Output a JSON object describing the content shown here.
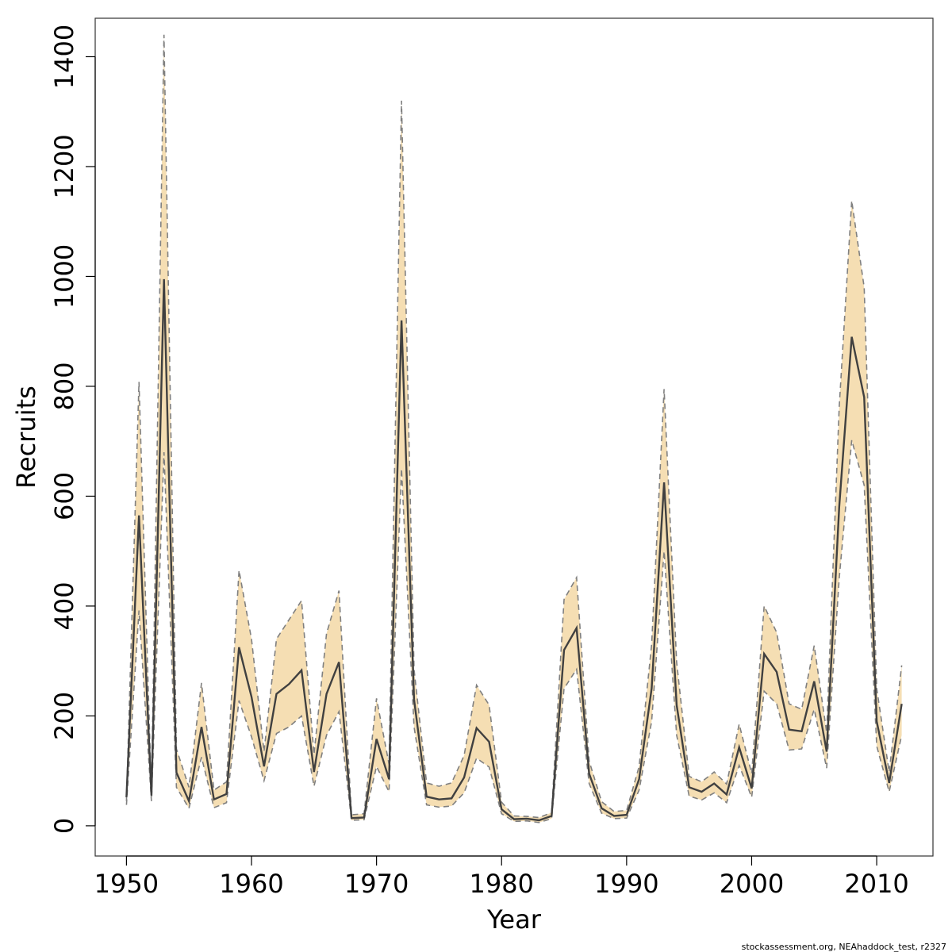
{
  "chart_data": {
    "type": "line",
    "xlabel": "Year",
    "ylabel": "Recruits",
    "xlim": [
      1947.5,
      2014.5
    ],
    "ylim": [
      -55,
      1470
    ],
    "x_ticks": [
      1950,
      1960,
      1970,
      1980,
      1990,
      2000,
      2010
    ],
    "y_ticks": [
      0,
      200,
      400,
      600,
      800,
      1000,
      1200,
      1400
    ],
    "grid": false,
    "legend": "none",
    "x": [
      1950,
      1951,
      1952,
      1953,
      1954,
      1955,
      1956,
      1957,
      1958,
      1959,
      1960,
      1961,
      1962,
      1963,
      1964,
      1965,
      1966,
      1967,
      1968,
      1969,
      1970,
      1971,
      1972,
      1973,
      1974,
      1975,
      1976,
      1977,
      1978,
      1979,
      1980,
      1981,
      1982,
      1983,
      1984,
      1985,
      1986,
      1987,
      1988,
      1989,
      1990,
      1991,
      1992,
      1993,
      1994,
      1995,
      1996,
      1997,
      1998,
      1999,
      2000,
      2001,
      2002,
      2003,
      2004,
      2005,
      2006,
      2007,
      2008,
      2009,
      2010,
      2011,
      2012
    ],
    "series": [
      {
        "role": "estimate",
        "values": [
          52,
          565,
          55,
          995,
          97,
          45,
          180,
          48,
          58,
          325,
          235,
          108,
          240,
          258,
          283,
          98,
          240,
          298,
          14,
          15,
          158,
          85,
          920,
          230,
          53,
          48,
          50,
          88,
          178,
          153,
          30,
          12,
          13,
          10,
          18,
          320,
          360,
          95,
          32,
          18,
          20,
          85,
          250,
          625,
          220,
          70,
          62,
          77,
          57,
          143,
          68,
          313,
          280,
          175,
          172,
          263,
          135,
          580,
          890,
          780,
          190,
          78,
          222
        ]
      },
      {
        "role": "upper",
        "values": [
          45,
          808,
          57,
          1440,
          140,
          70,
          260,
          65,
          80,
          465,
          340,
          135,
          340,
          375,
          410,
          130,
          350,
          428,
          20,
          22,
          232,
          112,
          1320,
          285,
          78,
          72,
          78,
          128,
          256,
          220,
          43,
          18,
          17,
          15,
          24,
          412,
          452,
          118,
          44,
          26,
          28,
          108,
          330,
          795,
          298,
          90,
          80,
          98,
          76,
          185,
          95,
          400,
          352,
          222,
          212,
          328,
          170,
          762,
          1138,
          980,
          250,
          98,
          292
        ]
      },
      {
        "role": "lower",
        "values": [
          38,
          392,
          45,
          680,
          70,
          32,
          125,
          33,
          42,
          228,
          162,
          82,
          168,
          180,
          200,
          72,
          165,
          208,
          10,
          11,
          108,
          62,
          650,
          180,
          38,
          34,
          36,
          60,
          123,
          107,
          22,
          8,
          9,
          6,
          13,
          250,
          285,
          77,
          23,
          13,
          14,
          65,
          190,
          500,
          165,
          54,
          47,
          60,
          42,
          110,
          52,
          245,
          222,
          138,
          140,
          212,
          105,
          450,
          702,
          620,
          145,
          62,
          165
        ]
      }
    ],
    "colors": {
      "band_fill": "#f5deb3",
      "bound_line": "#808080",
      "estimate_line": "#404040",
      "axis": "#000000"
    }
  },
  "footer": "stockassessment.org, NEAhaddock_test, r2327"
}
